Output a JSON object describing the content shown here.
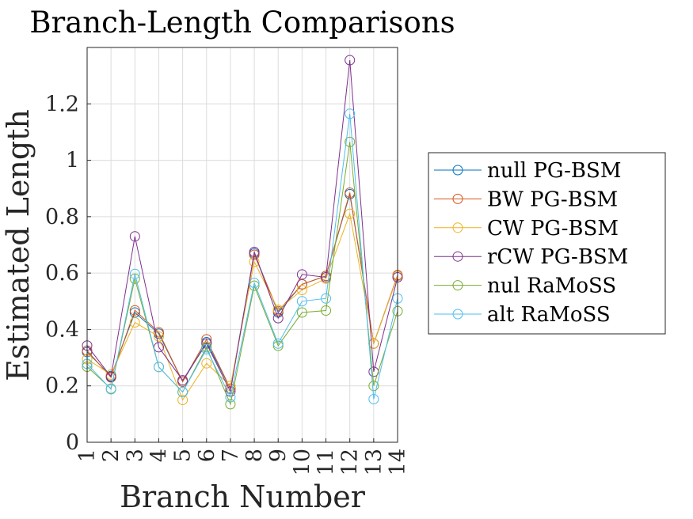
{
  "chart_data": {
    "type": "line",
    "title": "Branch-Length Comparisons",
    "xlabel": "Branch Number",
    "ylabel": "Estimated Length",
    "x": [
      1,
      2,
      3,
      4,
      5,
      6,
      7,
      8,
      9,
      10,
      11,
      12,
      13,
      14
    ],
    "xticklabels": [
      "1",
      "2",
      "3",
      "4",
      "5",
      "6",
      "7",
      "8",
      "9",
      "10",
      "11",
      "12",
      "13",
      "14"
    ],
    "xlim": [
      1,
      14
    ],
    "ylim": [
      0,
      1.4
    ],
    "yticks": [
      0,
      0.2,
      0.4,
      0.6,
      0.8,
      1,
      1.2
    ],
    "yticklabels": [
      "0",
      "0.2",
      "0.4",
      "0.6",
      "0.8",
      "1",
      "1.2"
    ],
    "grid": true,
    "legend_position": "outside-right",
    "marker": "open-circle",
    "series": [
      {
        "name": "null PG-BSM",
        "color": "#0072BD",
        "values": [
          0.32,
          0.235,
          0.46,
          0.385,
          0.215,
          0.355,
          0.19,
          0.67,
          0.46,
          0.56,
          0.59,
          0.88,
          0.35,
          0.59
        ]
      },
      {
        "name": "BW PG-BSM",
        "color": "#D95319",
        "values": [
          0.325,
          0.23,
          0.468,
          0.39,
          0.215,
          0.365,
          0.19,
          0.665,
          0.465,
          0.56,
          0.59,
          0.885,
          0.35,
          0.593
        ]
      },
      {
        "name": "CW PG-BSM",
        "color": "#EDB120",
        "values": [
          0.295,
          0.24,
          0.425,
          0.375,
          0.15,
          0.28,
          0.2,
          0.64,
          0.47,
          0.54,
          0.58,
          0.81,
          0.35,
          0.59
        ]
      },
      {
        "name": "rCW PG-BSM",
        "color": "#7E2F8E",
        "values": [
          0.343,
          0.232,
          0.73,
          0.337,
          0.22,
          0.35,
          0.18,
          0.675,
          0.44,
          0.595,
          0.585,
          1.355,
          0.25,
          0.585
        ]
      },
      {
        "name": "nul RaMoSS",
        "color": "#77AC30",
        "values": [
          0.268,
          0.19,
          0.58,
          0.267,
          0.178,
          0.337,
          0.135,
          0.555,
          0.342,
          0.46,
          0.467,
          1.065,
          0.2,
          0.465
        ]
      },
      {
        "name": "alt RaMoSS",
        "color": "#4DBEEE",
        "values": [
          0.278,
          0.188,
          0.597,
          0.267,
          0.178,
          0.33,
          0.16,
          0.565,
          0.35,
          0.5,
          0.51,
          1.165,
          0.153,
          0.51
        ]
      }
    ]
  }
}
